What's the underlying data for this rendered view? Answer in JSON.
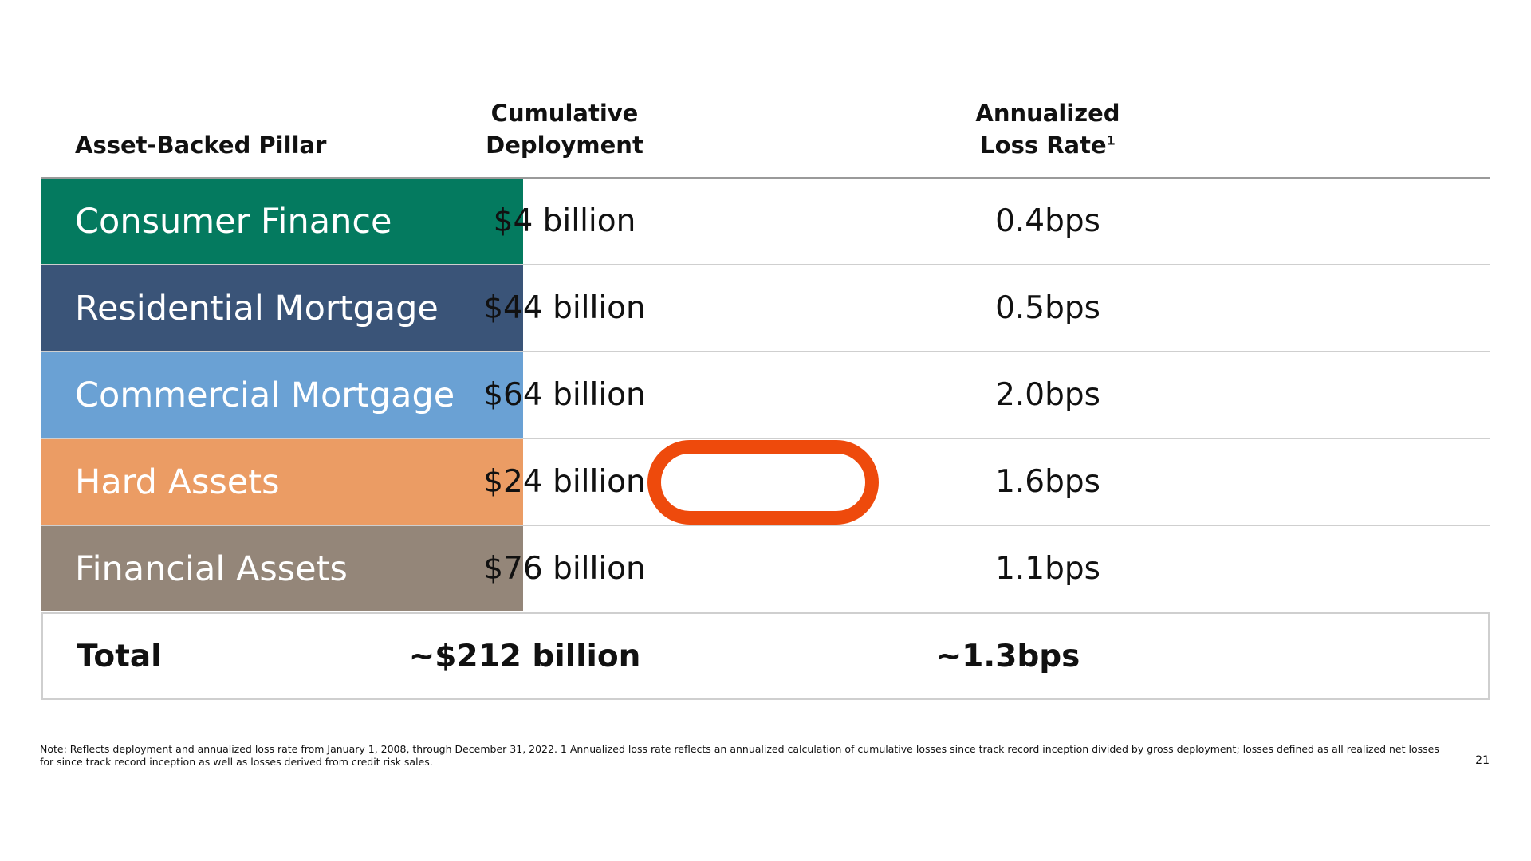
{
  "header": {
    "pillar": "Asset-Backed Pillar",
    "deployment_line1": "Cumulative",
    "deployment_line2": "Deployment",
    "loss_line1": "Annualized",
    "loss_line2": "Loss Rate",
    "loss_superscript": "1"
  },
  "rows": [
    {
      "label": "Consumer Finance",
      "deployment": "$4 billion",
      "loss_rate": "0.4bps",
      "color": "#047a5f"
    },
    {
      "label": "Residential Mortgage",
      "deployment": "$44 billion",
      "loss_rate": "0.5bps",
      "color": "#3a5478"
    },
    {
      "label": "Commercial Mortgage",
      "deployment": "$64 billion",
      "loss_rate": "2.0bps",
      "color": "#6aa1d4"
    },
    {
      "label": "Hard Assets",
      "deployment": "$24 billion",
      "loss_rate": "1.6bps",
      "color": "#eb9c64"
    },
    {
      "label": "Financial Assets",
      "deployment": "$76 billion",
      "loss_rate": "1.1bps",
      "color": "#948679"
    }
  ],
  "total": {
    "label": "Total",
    "deployment": "~$212 billion",
    "loss_rate": "~1.3bps"
  },
  "highlight_color": "#ee4a0c",
  "footnote": "Note: Reflects deployment and annualized loss rate from January 1, 2008, through December 31, 2022. 1 Annualized loss rate reflects an annualized calculation of cumulative losses since track record inception divided by gross deployment; losses defined as all realized net losses for since track record inception as well as losses derived from credit risk sales.",
  "page_number": "21"
}
